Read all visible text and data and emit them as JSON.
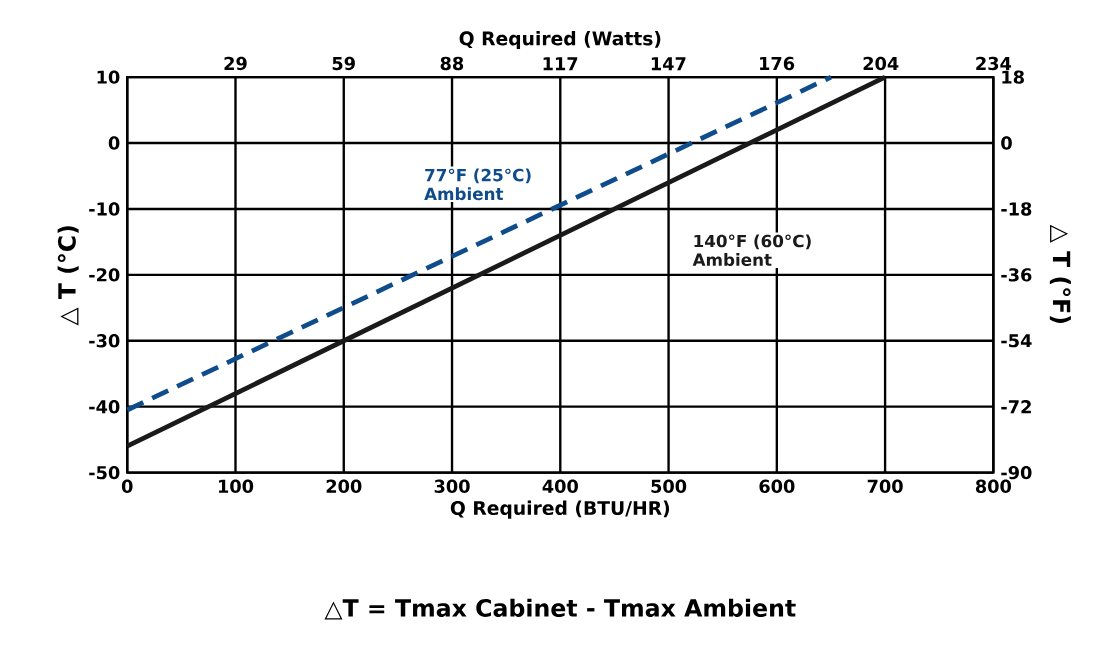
{
  "chart_data": {
    "type": "line",
    "xlabel": "Q Required (BTU/HR)",
    "x2label": "Q Required (Watts)",
    "ylabel": "△ T  (°C)",
    "y2label": "△ T  (°F)",
    "xlim": [
      0,
      800
    ],
    "xticks": [
      0,
      100,
      200,
      300,
      400,
      500,
      600,
      700,
      800
    ],
    "ylim": [
      -50,
      10
    ],
    "yticks": [
      -50,
      -40,
      -30,
      -20,
      -10,
      0,
      10
    ],
    "x2lim": [
      0,
      234.5
    ],
    "x2ticks": [
      {
        "value": 29.3,
        "label": "29"
      },
      {
        "value": 58.6,
        "label": "59"
      },
      {
        "value": 87.9,
        "label": "88"
      },
      {
        "value": 117.2,
        "label": "117"
      },
      {
        "value": 146.5,
        "label": "147"
      },
      {
        "value": 175.8,
        "label": "176"
      },
      {
        "value": 204,
        "label": "204"
      },
      {
        "value": 234.5,
        "label": "234"
      }
    ],
    "y2lim": [
      -90,
      18
    ],
    "y2ticks": [
      -90,
      -72,
      -54,
      -36,
      -18,
      0,
      18
    ],
    "grid": true,
    "series": [
      {
        "color": "#0f4c8c",
        "line_style": "dashed",
        "x": [
          0,
          650
        ],
        "values": [
          -40.5,
          10
        ]
      },
      {
        "color": "#1a1a1a",
        "line_style": "solid",
        "x": [
          0,
          700
        ],
        "values": [
          -46,
          10
        ]
      }
    ],
    "annotations": [
      "77°F (25°C) Ambient",
      "140°F (60°C) Ambient",
      "△T  =  Tmax Cabinet - Tmax Ambient"
    ]
  }
}
